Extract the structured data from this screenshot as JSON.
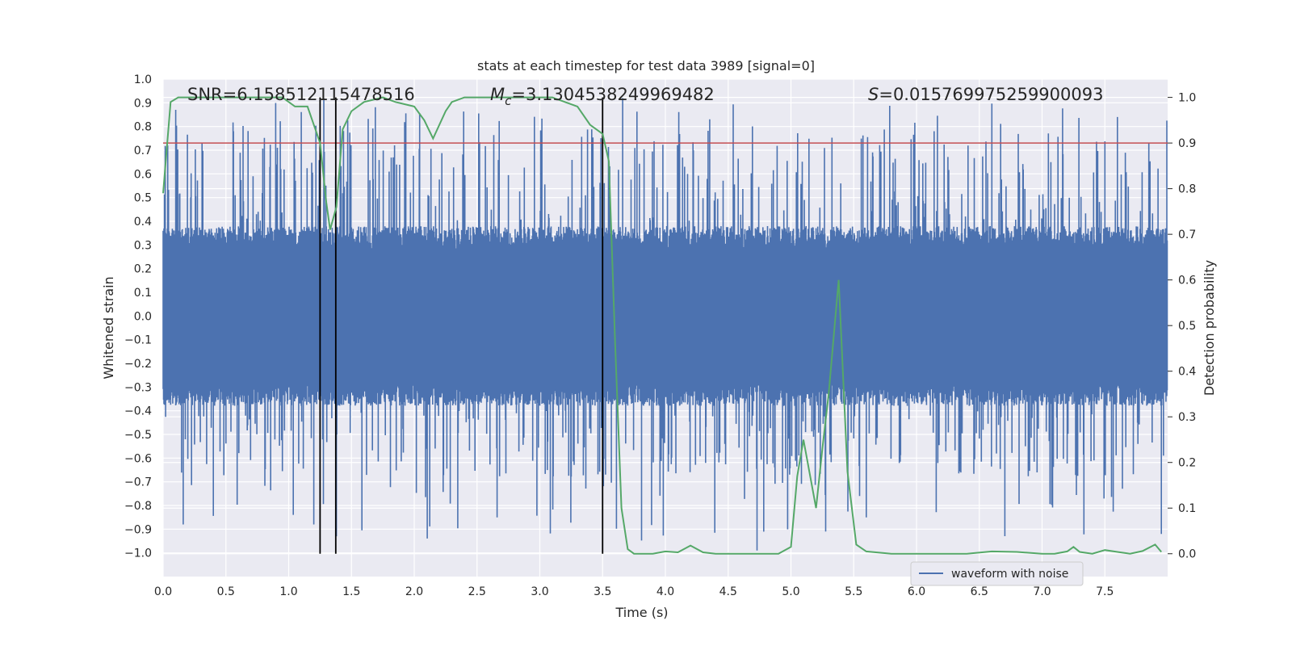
{
  "chart_data": {
    "type": "line",
    "title": "stats at each timestep for test data 3989 [signal=0]",
    "xlabel": "Time (s)",
    "ylabel": "Whitened strain",
    "ylabel_right": "Detection probability",
    "xlim": [
      0.0,
      8.0
    ],
    "ylim": [
      -1.1,
      1.0
    ],
    "ylim_right": [
      -0.05,
      1.04
    ],
    "x_ticks": [
      "0.0",
      "0.5",
      "1.0",
      "1.5",
      "2.0",
      "2.5",
      "3.0",
      "3.5",
      "4.0",
      "4.5",
      "5.0",
      "5.5",
      "6.0",
      "6.5",
      "7.0",
      "7.5"
    ],
    "y_ticks": [
      "1.0",
      "0.9",
      "0.8",
      "0.7",
      "0.6",
      "0.5",
      "0.4",
      "0.3",
      "0.2",
      "0.1",
      "0.0",
      "−0.1",
      "−0.2",
      "−0.3",
      "−0.4",
      "−0.5",
      "−0.6",
      "−0.7",
      "−0.8",
      "−0.9",
      "−1.0"
    ],
    "y_right_ticks": [
      "1.0",
      "0.9",
      "0.8",
      "0.7",
      "0.6",
      "0.5",
      "0.4",
      "0.3",
      "0.2",
      "0.1",
      "0.0"
    ],
    "annotations": {
      "snr": "SNR=6.158512115478516",
      "mc_symbol": "M",
      "mc_sub": "c",
      "mc_value": "=3.1304538249969482",
      "s_symbol": "S",
      "s_value": "=0.015769975259900093"
    },
    "legend": {
      "label": "waveform with noise",
      "position": "lower-right"
    },
    "threshold": {
      "value": 0.9,
      "color": "#c44e52"
    },
    "vertical_lines": [
      1.25,
      1.375,
      3.5
    ],
    "series": [
      {
        "name": "waveform with noise",
        "color": "#4c72b0",
        "axis": "left",
        "kind": "noise",
        "duration": 8.0,
        "core_amplitude": 0.33,
        "peak_range": [
          -0.99,
          0.92
        ]
      },
      {
        "name": "detection probability",
        "color": "#55a868",
        "axis": "right",
        "x": [
          0.0,
          0.06,
          0.12,
          0.2,
          0.4,
          0.6,
          0.8,
          0.95,
          1.05,
          1.15,
          1.25,
          1.3,
          1.33,
          1.38,
          1.43,
          1.5,
          1.6,
          1.75,
          1.85,
          2.0,
          2.08,
          2.15,
          2.25,
          2.3,
          2.4,
          2.5,
          2.6,
          2.75,
          2.9,
          3.1,
          3.2,
          3.3,
          3.4,
          3.5,
          3.55,
          3.6,
          3.65,
          3.7,
          3.75,
          3.8,
          3.9,
          4.0,
          4.1,
          4.2,
          4.3,
          4.4,
          4.5,
          4.6,
          4.7,
          4.8,
          4.9,
          5.0,
          5.05,
          5.1,
          5.2,
          5.25,
          5.3,
          5.38,
          5.45,
          5.52,
          5.6,
          5.8,
          6.0,
          6.2,
          6.4,
          6.6,
          6.8,
          7.0,
          7.1,
          7.2,
          7.25,
          7.3,
          7.4,
          7.5,
          7.6,
          7.7,
          7.8,
          7.9,
          7.95
        ],
        "y": [
          0.79,
          0.99,
          1.0,
          1.0,
          1.0,
          1.0,
          1.0,
          1.0,
          0.98,
          0.98,
          0.9,
          0.77,
          0.71,
          0.76,
          0.93,
          0.97,
          0.99,
          1.0,
          0.99,
          0.98,
          0.95,
          0.91,
          0.97,
          0.99,
          1.0,
          1.0,
          1.0,
          1.0,
          1.0,
          1.0,
          0.99,
          0.98,
          0.94,
          0.92,
          0.86,
          0.46,
          0.1,
          0.01,
          0.0,
          0.0,
          0.0,
          0.005,
          0.003,
          0.018,
          0.003,
          0.0,
          0.0,
          0.0,
          0.0,
          0.0,
          0.0,
          0.015,
          0.17,
          0.25,
          0.1,
          0.23,
          0.35,
          0.6,
          0.18,
          0.02,
          0.005,
          0.0,
          0.0,
          0.0,
          0.0,
          0.005,
          0.004,
          0.0,
          0.0,
          0.005,
          0.015,
          0.004,
          0.0,
          0.008,
          0.004,
          0.0,
          0.006,
          0.02,
          0.004
        ]
      }
    ]
  }
}
